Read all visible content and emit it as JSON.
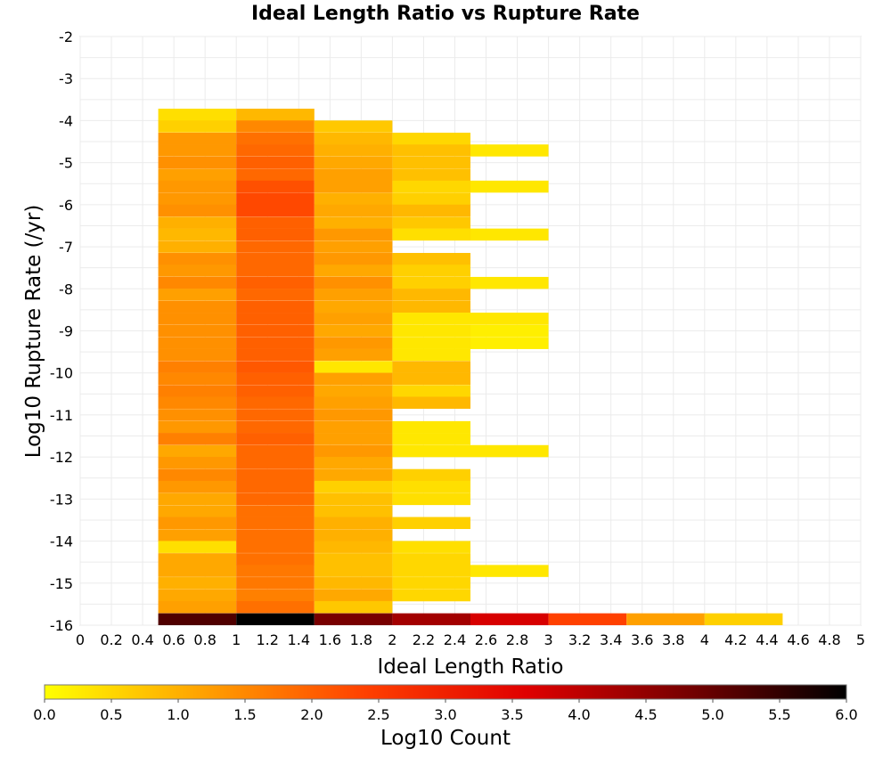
{
  "chart_data": {
    "type": "heatmap",
    "title": "Ideal Length Ratio vs Rupture Rate",
    "xlabel": "Ideal Length Ratio",
    "ylabel": "Log10 Rupture Rate (/yr)",
    "xlim": [
      0,
      5
    ],
    "ylim": [
      -16,
      -2
    ],
    "x_ticks": [
      "0",
      "0.2",
      "0.4",
      "0.6",
      "0.8",
      "1",
      "1.2",
      "1.4",
      "1.6",
      "1.8",
      "2",
      "2.2",
      "2.4",
      "2.6",
      "2.8",
      "3",
      "3.2",
      "3.4",
      "3.6",
      "3.8",
      "4",
      "4.2",
      "4.4",
      "4.6",
      "4.8",
      "5"
    ],
    "y_ticks": [
      "-2",
      "-3",
      "-4",
      "-5",
      "-6",
      "-7",
      "-8",
      "-9",
      "-10",
      "-11",
      "-12",
      "-13",
      "-14",
      "-15",
      "-16"
    ],
    "grid": true,
    "colorbar": {
      "label": "Log10 Count",
      "range": [
        0,
        6
      ],
      "ticks": [
        "0.0",
        "0.5",
        "1.0",
        "1.5",
        "2.0",
        "2.5",
        "3.0",
        "3.5",
        "4.0",
        "4.5",
        "5.0",
        "5.5",
        "6.0"
      ],
      "colors": [
        "#ffff00",
        "#ffa000",
        "#ff4000",
        "#e00000",
        "#780000",
        "#000000"
      ]
    },
    "bin_height": 0.2857,
    "columns": [
      {
        "x0": 0.5,
        "x1": 1.0,
        "cells": [
          [
            -3.86,
            0.4
          ],
          [
            -4.14,
            0.6
          ],
          [
            -4.43,
            1.3
          ],
          [
            -4.71,
            1.3
          ],
          [
            -5.0,
            1.4
          ],
          [
            -5.29,
            1.2
          ],
          [
            -5.57,
            1.3
          ],
          [
            -5.86,
            1.3
          ],
          [
            -6.14,
            1.4
          ],
          [
            -6.43,
            1.0
          ],
          [
            -6.71,
            0.9
          ],
          [
            -7.0,
            1.0
          ],
          [
            -7.29,
            1.4
          ],
          [
            -7.57,
            1.3
          ],
          [
            -7.86,
            1.5
          ],
          [
            -8.14,
            1.2
          ],
          [
            -8.43,
            1.4
          ],
          [
            -8.71,
            1.4
          ],
          [
            -9.0,
            1.4
          ],
          [
            -9.29,
            1.4
          ],
          [
            -9.57,
            1.4
          ],
          [
            -9.86,
            1.6
          ],
          [
            -10.14,
            1.5
          ],
          [
            -10.43,
            1.6
          ],
          [
            -10.71,
            1.5
          ],
          [
            -11.0,
            1.4
          ],
          [
            -11.29,
            1.3
          ],
          [
            -11.57,
            1.6
          ],
          [
            -11.86,
            1.1
          ],
          [
            -12.14,
            1.3
          ],
          [
            -12.43,
            1.5
          ],
          [
            -12.71,
            1.3
          ],
          [
            -13.0,
            1.1
          ],
          [
            -13.29,
            1.1
          ],
          [
            -13.57,
            1.3
          ],
          [
            -13.86,
            1.2
          ],
          [
            -14.14,
            0.4
          ],
          [
            -14.43,
            1.1
          ],
          [
            -14.71,
            1.1
          ],
          [
            -15.0,
            1.0
          ],
          [
            -15.29,
            1.1
          ],
          [
            -15.57,
            1.2
          ],
          [
            -15.86,
            5.2
          ]
        ]
      },
      {
        "x0": 1.0,
        "x1": 1.5,
        "cells": [
          [
            -3.86,
            0.9
          ],
          [
            -4.14,
            1.5
          ],
          [
            -4.43,
            1.8
          ],
          [
            -4.71,
            1.9
          ],
          [
            -5.0,
            2.0
          ],
          [
            -5.29,
            1.9
          ],
          [
            -5.57,
            2.2
          ],
          [
            -5.86,
            2.3
          ],
          [
            -6.14,
            2.3
          ],
          [
            -6.43,
            2.0
          ],
          [
            -6.71,
            2.0
          ],
          [
            -7.0,
            1.9
          ],
          [
            -7.29,
            1.9
          ],
          [
            -7.57,
            1.9
          ],
          [
            -7.86,
            2.0
          ],
          [
            -8.14,
            1.9
          ],
          [
            -8.43,
            2.0
          ],
          [
            -8.71,
            2.0
          ],
          [
            -9.0,
            2.0
          ],
          [
            -9.29,
            2.0
          ],
          [
            -9.57,
            2.0
          ],
          [
            -9.86,
            2.1
          ],
          [
            -10.14,
            2.0
          ],
          [
            -10.43,
            2.0
          ],
          [
            -10.71,
            1.9
          ],
          [
            -11.0,
            1.9
          ],
          [
            -11.29,
            1.9
          ],
          [
            -11.57,
            2.0
          ],
          [
            -11.86,
            1.9
          ],
          [
            -12.14,
            1.9
          ],
          [
            -12.43,
            1.9
          ],
          [
            -12.71,
            1.9
          ],
          [
            -13.0,
            1.9
          ],
          [
            -13.29,
            1.8
          ],
          [
            -13.57,
            1.8
          ],
          [
            -13.86,
            1.8
          ],
          [
            -14.14,
            1.8
          ],
          [
            -14.43,
            1.8
          ],
          [
            -14.71,
            1.7
          ],
          [
            -15.0,
            1.7
          ],
          [
            -15.29,
            1.6
          ],
          [
            -15.57,
            1.8
          ],
          [
            -15.86,
            6.0
          ]
        ]
      },
      {
        "x0": 1.5,
        "x1": 2.0,
        "cells": [
          [
            -4.14,
            0.7
          ],
          [
            -4.43,
            0.9
          ],
          [
            -4.71,
            1.0
          ],
          [
            -5.0,
            1.1
          ],
          [
            -5.29,
            1.2
          ],
          [
            -5.57,
            1.2
          ],
          [
            -5.86,
            1.0
          ],
          [
            -6.14,
            1.1
          ],
          [
            -6.43,
            1.0
          ],
          [
            -6.71,
            1.3
          ],
          [
            -7.0,
            1.2
          ],
          [
            -7.29,
            1.3
          ],
          [
            -7.57,
            1.1
          ],
          [
            -7.86,
            1.4
          ],
          [
            -8.14,
            1.2
          ],
          [
            -8.43,
            1.1
          ],
          [
            -8.71,
            1.2
          ],
          [
            -9.0,
            1.1
          ],
          [
            -9.29,
            1.3
          ],
          [
            -9.57,
            1.2
          ],
          [
            -9.86,
            0.3
          ],
          [
            -10.14,
            1.2
          ],
          [
            -10.43,
            1.1
          ],
          [
            -10.71,
            1.2
          ],
          [
            -11.0,
            1.3
          ],
          [
            -11.29,
            1.2
          ],
          [
            -11.57,
            1.2
          ],
          [
            -11.86,
            1.3
          ],
          [
            -12.14,
            1.1
          ],
          [
            -12.43,
            1.1
          ],
          [
            -12.71,
            0.6
          ],
          [
            -13.0,
            0.8
          ],
          [
            -13.29,
            0.8
          ],
          [
            -13.57,
            1.0
          ],
          [
            -13.86,
            1.0
          ],
          [
            -14.14,
            0.9
          ],
          [
            -14.43,
            0.8
          ],
          [
            -14.71,
            0.8
          ],
          [
            -15.0,
            0.9
          ],
          [
            -15.29,
            1.1
          ],
          [
            -15.57,
            0.7
          ],
          [
            -15.86,
            4.8
          ]
        ]
      },
      {
        "x0": 2.0,
        "x1": 2.5,
        "cells": [
          [
            -4.43,
            0.5
          ],
          [
            -4.71,
            0.8
          ],
          [
            -5.0,
            0.8
          ],
          [
            -5.29,
            0.8
          ],
          [
            -5.57,
            0.5
          ],
          [
            -5.86,
            0.6
          ],
          [
            -6.14,
            0.9
          ],
          [
            -6.43,
            0.7
          ],
          [
            -6.71,
            0.4
          ],
          [
            -7.29,
            0.8
          ],
          [
            -7.57,
            0.6
          ],
          [
            -7.86,
            0.6
          ],
          [
            -8.14,
            0.9
          ],
          [
            -8.43,
            0.9
          ],
          [
            -8.71,
            0.3
          ],
          [
            -9.0,
            0.3
          ],
          [
            -9.29,
            0.3
          ],
          [
            -9.57,
            0.3
          ],
          [
            -9.86,
            0.9
          ],
          [
            -10.14,
            0.9
          ],
          [
            -10.43,
            0.5
          ],
          [
            -10.71,
            0.9
          ],
          [
            -11.29,
            0.3
          ],
          [
            -11.57,
            0.3
          ],
          [
            -11.86,
            0.3
          ],
          [
            -12.43,
            0.6
          ],
          [
            -12.71,
            0.4
          ],
          [
            -13.0,
            0.4
          ],
          [
            -13.57,
            0.6
          ],
          [
            -14.14,
            0.4
          ],
          [
            -14.43,
            0.5
          ],
          [
            -14.71,
            0.5
          ],
          [
            -15.0,
            0.5
          ],
          [
            -15.29,
            0.5
          ],
          [
            -15.86,
            4.3
          ]
        ]
      },
      {
        "x0": 2.5,
        "x1": 3.0,
        "cells": [
          [
            -4.71,
            0.3
          ],
          [
            -5.57,
            0.3
          ],
          [
            -6.71,
            0.3
          ],
          [
            -7.86,
            0.3
          ],
          [
            -8.71,
            0.3
          ],
          [
            -9.0,
            0.2
          ],
          [
            -9.29,
            0.2
          ],
          [
            -11.86,
            0.3
          ],
          [
            -14.71,
            0.3
          ],
          [
            -15.86,
            3.7
          ]
        ]
      },
      {
        "x0": 3.0,
        "x1": 3.5,
        "cells": [
          [
            -15.86,
            2.4
          ]
        ]
      },
      {
        "x0": 3.5,
        "x1": 4.0,
        "cells": [
          [
            -15.86,
            1.2
          ]
        ]
      },
      {
        "x0": 4.0,
        "x1": 4.5,
        "cells": [
          [
            -15.86,
            0.6
          ]
        ]
      }
    ]
  }
}
